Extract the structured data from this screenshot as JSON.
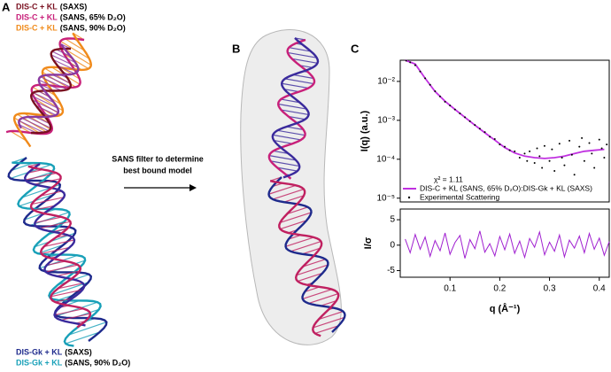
{
  "panels": {
    "a": "A",
    "b": "B",
    "c": "C"
  },
  "legend_top": [
    {
      "name": "DIS-C + KL",
      "detail": "(SAXS)",
      "color": "#7a1020"
    },
    {
      "name": "DIS-C + KL",
      "detail": "(SANS, 65% D₂O)",
      "color": "#c8207a"
    },
    {
      "name": "DIS-C + KL",
      "detail": "(SANS, 90% D₂O)",
      "color": "#f08a1a"
    }
  ],
  "legend_bottom": [
    {
      "name": "DIS-Gk + KL",
      "detail": "(SAXS)",
      "color": "#1e2a8c"
    },
    {
      "name": "DIS-Gk + KL",
      "detail": "(SANS, 90% D₂O)",
      "color": "#18a0b8"
    }
  ],
  "arrow_text": [
    "SANS filter to determine",
    "best bound model"
  ],
  "chart_data": [
    {
      "type": "line",
      "log_y": true,
      "ylabel": "I(q) (a.u.)",
      "annotation": "χ² = 1.11",
      "xlim": [
        0,
        0.42
      ],
      "ylim": [
        8e-06,
        0.035
      ],
      "yticks": [
        {
          "value": 0.01,
          "label": "10⁻²"
        },
        {
          "value": 0.001,
          "label": "10⁻³"
        },
        {
          "value": 0.0001,
          "label": "10⁻⁴"
        },
        {
          "value": 1e-05,
          "label": "10⁻⁵"
        }
      ],
      "series": [
        {
          "name": "DIS-C + KL (SANS, 65% D₂O):DIS-Gk + KL (SAXS)",
          "style": "line",
          "color": "#c030e0",
          "x": [
            0.01,
            0.03,
            0.05,
            0.07,
            0.09,
            0.11,
            0.13,
            0.15,
            0.17,
            0.19,
            0.21,
            0.23,
            0.25,
            0.27,
            0.29,
            0.31,
            0.33,
            0.35,
            0.37,
            0.39,
            0.41
          ],
          "values": [
            0.035,
            0.028,
            0.012,
            0.0055,
            0.0031,
            0.0019,
            0.0012,
            0.00075,
            0.00048,
            0.00031,
            0.0002,
            0.000145,
            0.00012,
            0.00011,
            0.000105,
            0.00011,
            0.00012,
            0.00014,
            0.00016,
            0.00017,
            0.00018
          ]
        },
        {
          "name": "Experimental Scattering",
          "style": "points",
          "color": "#000000",
          "x": [
            0.012,
            0.02,
            0.03,
            0.04,
            0.05,
            0.06,
            0.07,
            0.08,
            0.09,
            0.1,
            0.11,
            0.12,
            0.13,
            0.14,
            0.15,
            0.16,
            0.17,
            0.18,
            0.19,
            0.2,
            0.21,
            0.22,
            0.23,
            0.24,
            0.25,
            0.255,
            0.26,
            0.27,
            0.275,
            0.28,
            0.285,
            0.29,
            0.3,
            0.305,
            0.31,
            0.32,
            0.325,
            0.33,
            0.34,
            0.345,
            0.35,
            0.36,
            0.365,
            0.37,
            0.38,
            0.385,
            0.39,
            0.4,
            0.405,
            0.41,
            0.415
          ],
          "values": [
            0.034,
            0.031,
            0.026,
            0.018,
            0.012,
            0.0082,
            0.0056,
            0.0041,
            0.003,
            0.0024,
            0.0019,
            0.0015,
            0.0012,
            0.00095,
            0.00076,
            0.00061,
            0.0005,
            0.00038,
            0.00033,
            0.00024,
            0.00021,
            0.00017,
            0.00016,
            0.00011,
            0.00014,
            9e-05,
            0.00016,
            8e-05,
            0.00019,
            0.00012,
            6e-05,
            0.00022,
            9e-05,
            0.00018,
            5e-05,
            0.00025,
            0.00011,
            7e-05,
            0.0003,
            0.00013,
            4e-05,
            0.00021,
            0.00035,
            9e-05,
            0.00026,
            0.00014,
            6e-05,
            0.00032,
            0.00019,
            0.00011,
            0.00024
          ]
        }
      ]
    },
    {
      "type": "line",
      "ylabel": "I/σ",
      "xlabel": "q (Å⁻¹)",
      "xlim": [
        0,
        0.42
      ],
      "ylim": [
        -6.3,
        7.1
      ],
      "xticks": [
        0.1,
        0.2,
        0.3,
        0.4
      ],
      "yticks": [
        5,
        0,
        -5
      ],
      "x": [
        0.01,
        0.02,
        0.03,
        0.04,
        0.05,
        0.06,
        0.07,
        0.08,
        0.09,
        0.1,
        0.11,
        0.12,
        0.13,
        0.14,
        0.15,
        0.16,
        0.17,
        0.18,
        0.19,
        0.2,
        0.21,
        0.22,
        0.23,
        0.24,
        0.25,
        0.26,
        0.27,
        0.28,
        0.29,
        0.3,
        0.31,
        0.32,
        0.33,
        0.34,
        0.35,
        0.36,
        0.37,
        0.38,
        0.39,
        0.4,
        0.41,
        0.42
      ],
      "series": [
        {
          "color": "#a020d0",
          "values": [
            1.2,
            -1.5,
            2.1,
            -0.8,
            1.6,
            -2.2,
            0.9,
            -1.1,
            2.4,
            -1.8,
            0.5,
            1.9,
            -2.6,
            1.1,
            -0.7,
            2.8,
            -1.4,
            0.3,
            -2.1,
            1.7,
            -0.9,
            2.2,
            -1.6,
            0.8,
            -2.4,
            1.3,
            -0.4,
            2.6,
            -1.9,
            0.6,
            -1.2,
            2.0,
            -2.3,
            1.0,
            -0.6,
            1.8,
            -1.5,
            2.3,
            -0.8,
            1.4,
            -2.0,
            0.7
          ]
        }
      ]
    }
  ]
}
